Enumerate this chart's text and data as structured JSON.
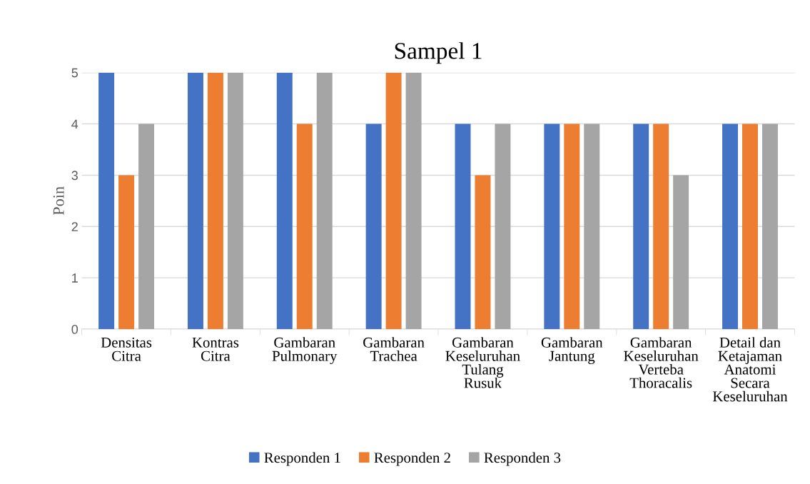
{
  "chart_data": {
    "type": "bar",
    "title": "Sampel 1",
    "ylabel": "Poin",
    "categories": [
      "Densitas\nCitra",
      "Kontras\nCitra",
      "Gambaran\nPulmonary",
      "Gambaran\nTrachea",
      "Gambaran\nKeseluruhan\nTulang\nRusuk",
      "Gambaran\nJantung",
      "Gambaran\nKeseluruhan\nVerteba\nThoracalis",
      "Detail dan\nKetajaman\nAnatomi\nSecara\nKeseluruhan"
    ],
    "series": [
      {
        "name": "Responden 1",
        "color": "#4472c4",
        "values": [
          5,
          5,
          5,
          4,
          4,
          4,
          4,
          4
        ]
      },
      {
        "name": "Responden 2",
        "color": "#ed7d31",
        "values": [
          3,
          5,
          4,
          5,
          3,
          4,
          4,
          4
        ]
      },
      {
        "name": "Responden 3",
        "color": "#a5a5a5",
        "values": [
          4,
          5,
          5,
          5,
          4,
          4,
          3,
          4
        ]
      }
    ],
    "ylim": [
      0,
      5
    ],
    "yticks": [
      0,
      1,
      2,
      3,
      4,
      5
    ],
    "grid": "y",
    "legend": "bottom"
  }
}
